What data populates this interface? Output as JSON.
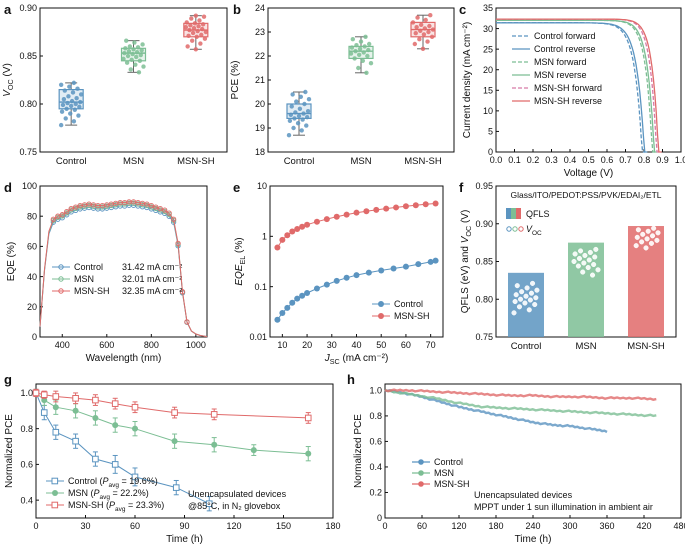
{
  "chart_data": [
    {
      "id": "a",
      "type": "box",
      "panel_letter": "a",
      "ylabel": "V_OC (V)",
      "ylim": [
        0.75,
        0.9
      ],
      "yticks": [
        0.75,
        0.8,
        0.85,
        0.9
      ],
      "yticklabels": [
        "0.75",
        "0.80",
        "0.85",
        "0.90"
      ],
      "categories": [
        "Control",
        "MSN",
        "MSN-SH"
      ],
      "colors": [
        "#5b94c0",
        "#7cbe94",
        "#e06a6a"
      ],
      "boxes": [
        {
          "q1": 0.795,
          "median": 0.802,
          "q3": 0.815,
          "whislo": 0.778,
          "whishi": 0.822
        },
        {
          "q1": 0.845,
          "median": 0.853,
          "q3": 0.858,
          "whislo": 0.833,
          "whishi": 0.866
        },
        {
          "q1": 0.87,
          "median": 0.877,
          "q3": 0.884,
          "whislo": 0.857,
          "whishi": 0.892
        }
      ],
      "points": [
        [
          0.778,
          0.782,
          0.785,
          0.788,
          0.79,
          0.792,
          0.794,
          0.795,
          0.797,
          0.798,
          0.799,
          0.8,
          0.801,
          0.802,
          0.803,
          0.805,
          0.806,
          0.808,
          0.81,
          0.812,
          0.814,
          0.816,
          0.818,
          0.82,
          0.822
        ],
        [
          0.833,
          0.836,
          0.839,
          0.841,
          0.843,
          0.845,
          0.846,
          0.847,
          0.849,
          0.85,
          0.851,
          0.852,
          0.853,
          0.854,
          0.855,
          0.856,
          0.857,
          0.858,
          0.859,
          0.86,
          0.862,
          0.864,
          0.866
        ],
        [
          0.857,
          0.86,
          0.863,
          0.866,
          0.868,
          0.87,
          0.871,
          0.872,
          0.874,
          0.875,
          0.876,
          0.877,
          0.878,
          0.879,
          0.88,
          0.881,
          0.882,
          0.883,
          0.884,
          0.885,
          0.887,
          0.889,
          0.891,
          0.892
        ]
      ]
    },
    {
      "id": "b",
      "type": "box",
      "panel_letter": "b",
      "ylabel": "PCE (%)",
      "ylim": [
        18,
        24
      ],
      "yticks": [
        18,
        19,
        20,
        21,
        22,
        23,
        24
      ],
      "yticklabels": [
        "18",
        "19",
        "20",
        "21",
        "22",
        "23",
        "24"
      ],
      "categories": [
        "Control",
        "MSN",
        "MSN-SH"
      ],
      "colors": [
        "#5b94c0",
        "#7cbe94",
        "#e06a6a"
      ],
      "boxes": [
        {
          "q1": 19.4,
          "median": 19.6,
          "q3": 20.0,
          "whislo": 18.7,
          "whishi": 20.5
        },
        {
          "q1": 21.9,
          "median": 22.2,
          "q3": 22.4,
          "whislo": 21.3,
          "whishi": 22.8
        },
        {
          "q1": 22.8,
          "median": 23.1,
          "q3": 23.4,
          "whislo": 22.3,
          "whishi": 23.7
        }
      ],
      "points": [
        [
          18.7,
          18.9,
          19.0,
          19.1,
          19.2,
          19.3,
          19.35,
          19.4,
          19.45,
          19.5,
          19.55,
          19.6,
          19.65,
          19.7,
          19.8,
          19.9,
          20.0,
          20.1,
          20.2,
          20.3,
          20.4,
          20.5
        ],
        [
          21.3,
          21.5,
          21.7,
          21.8,
          21.9,
          22.0,
          22.05,
          22.1,
          22.15,
          22.2,
          22.25,
          22.3,
          22.35,
          22.4,
          22.45,
          22.5,
          22.6,
          22.7,
          22.8
        ],
        [
          22.3,
          22.5,
          22.6,
          22.7,
          22.8,
          22.9,
          22.95,
          23.0,
          23.05,
          23.1,
          23.15,
          23.2,
          23.25,
          23.3,
          23.4,
          23.5,
          23.6,
          23.7
        ]
      ]
    },
    {
      "id": "c",
      "type": "line",
      "panel_letter": "c",
      "xlabel": "Voltage (V)",
      "ylabel": "Current density (mA cm⁻²)",
      "xlim": [
        0.0,
        1.0
      ],
      "ylim": [
        0,
        35
      ],
      "xticks": [
        0.0,
        0.1,
        0.2,
        0.3,
        0.4,
        0.5,
        0.6,
        0.7,
        0.8,
        0.9,
        1.0
      ],
      "xticklabels": [
        "0.0",
        "0.1",
        "0.2",
        "0.3",
        "0.4",
        "0.5",
        "0.6",
        "0.7",
        "0.8",
        "0.9",
        "1.0"
      ],
      "yticks": [
        0,
        5,
        10,
        15,
        20,
        25,
        30,
        35
      ],
      "yticklabels": [
        "0",
        "5",
        "10",
        "15",
        "20",
        "25",
        "30",
        "35"
      ],
      "series": [
        {
          "name": "Control forward",
          "color": "#5b94c0",
          "dash": true,
          "jsc": 31.4,
          "voc": 0.79,
          "n": 0.04
        },
        {
          "name": "Control reverse",
          "color": "#5b94c0",
          "dash": false,
          "jsc": 31.4,
          "voc": 0.802,
          "n": 0.04
        },
        {
          "name": "MSN forward",
          "color": "#7cbe94",
          "dash": true,
          "jsc": 32.0,
          "voc": 0.845,
          "n": 0.036
        },
        {
          "name": "MSN reverse",
          "color": "#7cbe94",
          "dash": false,
          "jsc": 32.0,
          "voc": 0.855,
          "n": 0.036
        },
        {
          "name": "MSN-SH forward",
          "color": "#d77aa6",
          "dash": true,
          "jsc": 32.3,
          "voc": 0.868,
          "n": 0.034
        },
        {
          "name": "MSN-SH reverse",
          "color": "#e06a6a",
          "dash": false,
          "jsc": 32.3,
          "voc": 0.878,
          "n": 0.034
        }
      ]
    },
    {
      "id": "d",
      "type": "line",
      "panel_letter": "d",
      "xlabel": "Wavelength (nm)",
      "ylabel": "EQE (%)",
      "xlim": [
        300,
        1050
      ],
      "ylim": [
        0,
        100
      ],
      "xticks": [
        400,
        600,
        800,
        1000
      ],
      "xticklabels": [
        "400",
        "600",
        "800",
        "1000"
      ],
      "yticks": [
        0,
        20,
        40,
        60,
        80,
        100
      ],
      "yticklabels": [
        "0",
        "20",
        "40",
        "60",
        "80",
        "100"
      ],
      "series": [
        {
          "name": "Control",
          "color": "#5b94c0",
          "annotation": "31.42 mA cm⁻²",
          "scale": 0.975
        },
        {
          "name": "MSN",
          "color": "#7cbe94",
          "annotation": "32.01 mA cm⁻²",
          "scale": 0.99
        },
        {
          "name": "MSN-SH",
          "color": "#e06a6a",
          "annotation": "32.35 mA cm⁻²",
          "scale": 1.0
        }
      ],
      "base_curve": {
        "x": [
          300,
          320,
          340,
          360,
          380,
          400,
          420,
          440,
          460,
          480,
          500,
          520,
          540,
          560,
          580,
          600,
          620,
          640,
          660,
          680,
          700,
          720,
          740,
          760,
          780,
          800,
          820,
          840,
          860,
          880,
          900,
          920,
          940,
          960,
          980,
          1000,
          1020,
          1040,
          1050
        ],
        "y": [
          7,
          45,
          70,
          78,
          80,
          81,
          83,
          85,
          86,
          87,
          87.5,
          88,
          87.5,
          87,
          87,
          87.5,
          88,
          88.5,
          89,
          89,
          89.5,
          89.5,
          89,
          88.5,
          88,
          87,
          86,
          85,
          84,
          82,
          78,
          62,
          30,
          10,
          4,
          2,
          1,
          0.5,
          0.3
        ]
      }
    },
    {
      "id": "e",
      "type": "scatter-line",
      "panel_letter": "e",
      "xlabel": "J_SC (mA cm⁻²)",
      "ylabel": "EQE_EL (%)",
      "xlim": [
        5,
        75
      ],
      "ylim": [
        0.01,
        10
      ],
      "yscale": "log",
      "xticks": [
        10,
        20,
        30,
        40,
        50,
        60,
        70
      ],
      "xticklabels": [
        "10",
        "20",
        "30",
        "40",
        "50",
        "60",
        "70"
      ],
      "yticks": [
        0.01,
        0.1,
        1,
        10
      ],
      "yticklabels": [
        "0.01",
        "0.1",
        "1",
        "10"
      ],
      "series": [
        {
          "name": "Control",
          "color": "#5b94c0",
          "x": [
            8,
            10,
            12,
            14,
            16,
            18,
            20,
            24,
            28,
            32,
            36,
            40,
            45,
            50,
            55,
            60,
            65,
            70,
            72
          ],
          "y": [
            0.022,
            0.03,
            0.038,
            0.048,
            0.058,
            0.066,
            0.075,
            0.092,
            0.11,
            0.13,
            0.15,
            0.17,
            0.19,
            0.21,
            0.23,
            0.25,
            0.28,
            0.31,
            0.33
          ]
        },
        {
          "name": "MSN-SH",
          "color": "#e06a6a",
          "x": [
            8,
            10,
            12,
            14,
            16,
            18,
            20,
            24,
            28,
            32,
            36,
            40,
            44,
            48,
            52,
            56,
            60,
            64,
            68,
            72
          ],
          "y": [
            0.6,
            0.85,
            1.05,
            1.25,
            1.4,
            1.55,
            1.7,
            1.95,
            2.2,
            2.45,
            2.7,
            2.95,
            3.15,
            3.35,
            3.55,
            3.75,
            3.95,
            4.15,
            4.35,
            4.5
          ]
        }
      ]
    },
    {
      "id": "f",
      "type": "bar",
      "panel_letter": "f",
      "title": "Glass/ITO/PEDOT:PSS/PVK/EDAI₂/ETL",
      "ylabel": "QFLS (eV) and V_OC (V)",
      "ylim": [
        0.75,
        0.95
      ],
      "yticks": [
        0.75,
        0.8,
        0.85,
        0.9,
        0.95
      ],
      "yticklabels": [
        "0.75",
        "0.80",
        "0.85",
        "0.90",
        "0.95"
      ],
      "categories": [
        "Control",
        "MSN",
        "MSN-SH"
      ],
      "colors": [
        "#5b94c0",
        "#7cbe94",
        "#e06a6a"
      ],
      "values": [
        0.835,
        0.875,
        0.897
      ],
      "legend": [
        "QFLS",
        "V_OC"
      ],
      "points": [
        [
          0.782,
          0.786,
          0.79,
          0.793,
          0.795,
          0.797,
          0.799,
          0.8,
          0.802,
          0.804,
          0.806,
          0.808,
          0.81,
          0.812,
          0.815,
          0.818,
          0.821
        ],
        [
          0.832,
          0.836,
          0.839,
          0.842,
          0.844,
          0.846,
          0.848,
          0.85,
          0.852,
          0.854,
          0.856,
          0.858,
          0.86,
          0.862,
          0.864,
          0.866
        ],
        [
          0.868,
          0.871,
          0.874,
          0.876,
          0.878,
          0.88,
          0.882,
          0.884,
          0.886,
          0.888,
          0.89,
          0.892,
          0.894
        ]
      ]
    },
    {
      "id": "g",
      "type": "line-errorbar",
      "panel_letter": "g",
      "xlabel": "Time (h)",
      "ylabel": "Normalized PCE",
      "xlim": [
        0,
        180
      ],
      "ylim": [
        0.3,
        1.05
      ],
      "xticks": [
        0,
        30,
        60,
        90,
        120,
        150,
        180
      ],
      "xticklabels": [
        "0",
        "30",
        "60",
        "90",
        "120",
        "150",
        "180"
      ],
      "yticks": [
        0.4,
        0.6,
        0.8,
        1.0
      ],
      "yticklabels": [
        "0.4",
        "0.6",
        "0.8",
        "1.0"
      ],
      "annotation": [
        "Unencapsulated devices",
        "@85°C, in N₂ glovebox"
      ],
      "series": [
        {
          "name": "Control (P_avg = 19.6%)",
          "color": "#5b94c0",
          "marker": "square-open",
          "x": [
            0,
            5,
            12,
            24,
            36,
            48,
            60,
            85,
            105
          ],
          "y": [
            1.0,
            0.89,
            0.78,
            0.73,
            0.63,
            0.6,
            0.53,
            0.47,
            0.38
          ],
          "err": [
            0.02,
            0.04,
            0.04,
            0.04,
            0.04,
            0.05,
            0.05,
            0.04,
            0.04
          ]
        },
        {
          "name": "MSN (P_avg = 22.2%)",
          "color": "#7cbe94",
          "marker": "circle-filled",
          "x": [
            0,
            5,
            12,
            24,
            36,
            48,
            60,
            84,
            108,
            132,
            165
          ],
          "y": [
            1.0,
            0.96,
            0.92,
            0.9,
            0.86,
            0.82,
            0.8,
            0.73,
            0.71,
            0.68,
            0.66
          ],
          "err": [
            0.02,
            0.03,
            0.04,
            0.04,
            0.04,
            0.04,
            0.04,
            0.04,
            0.04,
            0.03,
            0.04
          ]
        },
        {
          "name": "MSN-SH (P_avg = 23.3%)",
          "color": "#e06a6a",
          "marker": "square-open",
          "x": [
            0,
            5,
            12,
            24,
            36,
            48,
            60,
            84,
            108,
            165
          ],
          "y": [
            1.0,
            0.99,
            0.98,
            0.97,
            0.96,
            0.94,
            0.92,
            0.89,
            0.88,
            0.86
          ],
          "err": [
            0.02,
            0.02,
            0.03,
            0.03,
            0.03,
            0.03,
            0.03,
            0.03,
            0.03,
            0.03
          ]
        }
      ]
    },
    {
      "id": "h",
      "type": "line",
      "panel_letter": "h",
      "xlabel": "Time (h)",
      "ylabel": "Normalized PCE",
      "xlim": [
        0,
        480
      ],
      "ylim": [
        0,
        1.05
      ],
      "xticks": [
        0,
        60,
        120,
        180,
        240,
        300,
        360,
        420,
        480
      ],
      "xticklabels": [
        "0",
        "60",
        "120",
        "180",
        "240",
        "300",
        "360",
        "420",
        "480"
      ],
      "yticks": [
        0,
        0.2,
        0.4,
        0.6,
        0.8,
        1.0
      ],
      "yticklabels": [
        "0",
        "0.2",
        "0.4",
        "0.6",
        "0.8",
        "1.0"
      ],
      "annotation": [
        "Unencapsulated devices",
        "MPPT under 1 sun illumination in ambient air"
      ],
      "series": [
        {
          "name": "Control",
          "color": "#5b94c0",
          "x": [
            0,
            30,
            60,
            90,
            120,
            150,
            180,
            210,
            240,
            270,
            300,
            330,
            360
          ],
          "y": [
            1.0,
            0.98,
            0.95,
            0.91,
            0.87,
            0.84,
            0.81,
            0.78,
            0.75,
            0.73,
            0.72,
            0.7,
            0.68
          ]
        },
        {
          "name": "MSN",
          "color": "#7cbe94",
          "x": [
            0,
            40,
            80,
            120,
            160,
            200,
            240,
            280,
            320,
            360,
            400,
            440
          ],
          "y": [
            1.0,
            0.97,
            0.94,
            0.9,
            0.87,
            0.86,
            0.85,
            0.84,
            0.83,
            0.82,
            0.81,
            0.8
          ]
        },
        {
          "name": "MSN-SH",
          "color": "#e06a6a",
          "x": [
            0,
            40,
            80,
            120,
            160,
            200,
            240,
            280,
            320,
            360,
            400,
            440
          ],
          "y": [
            1.0,
            1.0,
            0.99,
            0.98,
            0.97,
            0.96,
            0.96,
            0.95,
            0.95,
            0.94,
            0.94,
            0.93
          ]
        }
      ]
    }
  ]
}
